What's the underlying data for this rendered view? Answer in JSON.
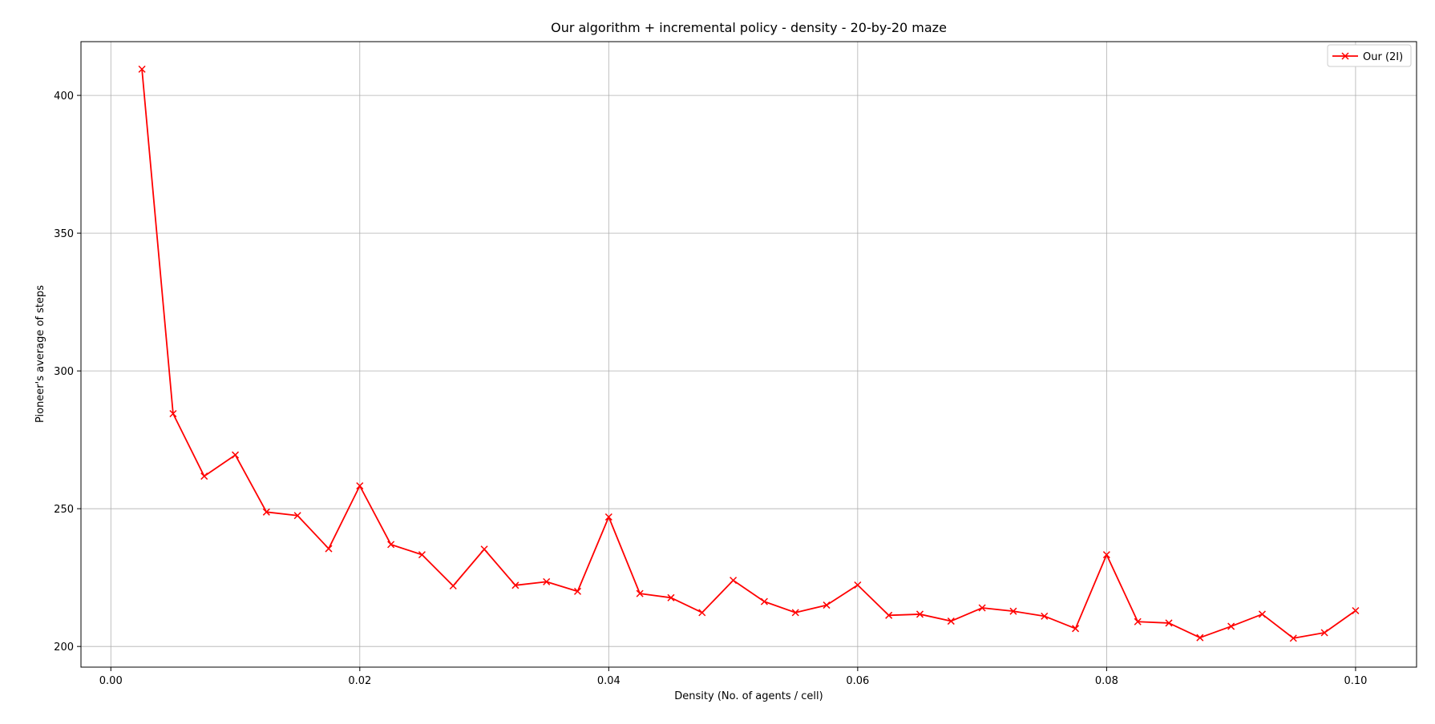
{
  "chart_data": {
    "type": "line",
    "title": "Our algorithm + incremental policy - density - 20-by-20 maze",
    "xlabel": "Density (No. of agents / cell)",
    "ylabel": "Pioneer's average of steps",
    "xlim": [
      -0.0024,
      0.1049
    ],
    "ylim": [
      192.5,
      419.5
    ],
    "xticks": [
      0.0,
      0.02,
      0.04,
      0.06,
      0.08,
      0.1
    ],
    "xtick_labels": [
      "0.00",
      "0.02",
      "0.04",
      "0.06",
      "0.08",
      "0.10"
    ],
    "yticks": [
      200,
      250,
      300,
      350,
      400
    ],
    "ytick_labels": [
      "200",
      "250",
      "300",
      "350",
      "400"
    ],
    "grid": true,
    "legend_position": "top-right",
    "series": [
      {
        "name": "Our (2I)",
        "color": "#ff0000",
        "marker": "x",
        "x": [
          0.0025,
          0.005,
          0.0075,
          0.01,
          0.0125,
          0.015,
          0.0175,
          0.02,
          0.0225,
          0.025,
          0.0275,
          0.03,
          0.0325,
          0.035,
          0.0375,
          0.04,
          0.0425,
          0.045,
          0.0475,
          0.05,
          0.0525,
          0.055,
          0.0575,
          0.06,
          0.0625,
          0.065,
          0.0675,
          0.07,
          0.0725,
          0.075,
          0.0775,
          0.08,
          0.0825,
          0.085,
          0.0875,
          0.09,
          0.0925,
          0.095,
          0.0975,
          0.1
        ],
        "y": [
          409.5,
          284.5,
          261.8,
          269.5,
          248.8,
          247.5,
          235.5,
          258.3,
          237.0,
          233.3,
          222.0,
          235.3,
          222.2,
          223.5,
          220.0,
          247.0,
          219.2,
          217.7,
          212.3,
          224.0,
          216.3,
          212.3,
          215.0,
          222.3,
          211.3,
          211.7,
          209.2,
          214.0,
          212.8,
          211.0,
          206.5,
          233.3,
          209.0,
          208.5,
          203.2,
          207.3,
          211.7,
          203.0,
          205.0,
          213.0
        ]
      }
    ]
  }
}
